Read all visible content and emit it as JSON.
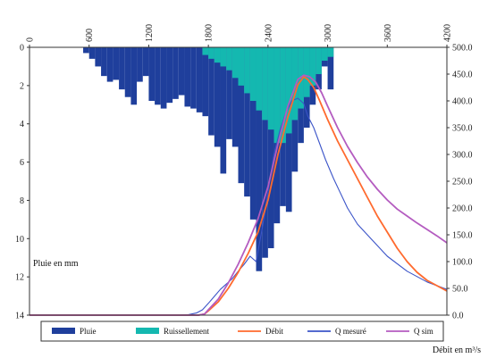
{
  "chart_data": {
    "type": "bar+line",
    "x": {
      "ticks": [
        0,
        600,
        1200,
        1800,
        2400,
        3000,
        3600,
        4200
      ],
      "range": [
        0,
        4200
      ],
      "tick_position": "top",
      "tick_rotation": -90
    },
    "y_left": {
      "label": "Pluie en mm",
      "ticks": [
        0,
        2,
        4,
        6,
        8,
        10,
        12,
        14
      ],
      "range": [
        0,
        14
      ],
      "inverted": true
    },
    "y_right": {
      "label": "Débit en m³/s",
      "ticks": [
        "0.0",
        "50.0",
        "100.0",
        "150.0",
        "200.0",
        "250.0",
        "300.0",
        "350.0",
        "400.0",
        "450.0",
        "500.0"
      ],
      "range": [
        0,
        500
      ]
    },
    "legend": {
      "placement": "bottom",
      "entries": [
        {
          "label": "Pluie",
          "color": "#1f3f9c",
          "kind": "bar"
        },
        {
          "label": "Ruissellement",
          "color": "#14b8b0",
          "kind": "bar"
        },
        {
          "label": "Débit",
          "color": "#ff6a2e",
          "kind": "line"
        },
        {
          "label": "Q mesuré",
          "color": "#3b54c8",
          "kind": "line"
        },
        {
          "label": "Q sim",
          "color": "#b45cc0",
          "kind": "line"
        }
      ]
    },
    "bar_width": 60,
    "series_bars": [
      {
        "name": "Pluie",
        "color": "#1f3f9c",
        "start_x": [
          540,
          600,
          660,
          720,
          780,
          840,
          900,
          960,
          1020,
          1080,
          1140,
          1200,
          1260,
          1320,
          1380,
          1440,
          1500,
          1560,
          1620,
          1680,
          1740,
          1800,
          1860,
          1920,
          1980,
          2040,
          2100,
          2160,
          2220,
          2280,
          2340,
          2400,
          2460,
          2520,
          2580,
          2640,
          2700,
          2760,
          2820,
          2880,
          2940,
          3000
        ],
        "values": [
          0.3,
          0.6,
          1.0,
          1.5,
          1.8,
          1.7,
          2.2,
          2.6,
          3.0,
          1.8,
          1.5,
          2.8,
          3.0,
          3.2,
          2.9,
          2.7,
          2.5,
          3.1,
          3.2,
          3.4,
          3.6,
          4.6,
          5.2,
          6.6,
          4.8,
          5.2,
          7.1,
          7.8,
          9.0,
          11.7,
          11.0,
          10.5,
          9.2,
          8.3,
          8.6,
          6.5,
          5.0,
          4.2,
          3.0,
          2.2,
          1.0,
          2.2
        ]
      },
      {
        "name": "Ruissellement",
        "color": "#14b8b0",
        "start_x": [
          1740,
          1800,
          1860,
          1920,
          1980,
          2040,
          2100,
          2160,
          2220,
          2280,
          2340,
          2400,
          2460,
          2520,
          2580,
          2640,
          2700,
          2760,
          2820,
          2880,
          2940,
          3000
        ],
        "values": [
          0.4,
          0.6,
          0.8,
          1.0,
          1.2,
          1.6,
          2.0,
          2.4,
          2.8,
          3.3,
          3.8,
          4.3,
          5.0,
          5.0,
          4.5,
          3.8,
          3.2,
          2.6,
          2.0,
          1.4,
          0.7,
          0.5
        ]
      }
    ],
    "series_lines": [
      {
        "name": "Q mesuré",
        "color": "#3b54c8",
        "x": [
          0,
          1500,
          1600,
          1680,
          1740,
          1800,
          1860,
          1920,
          1980,
          2040,
          2100,
          2160,
          2220,
          2280,
          2340,
          2400,
          2460,
          2520,
          2580,
          2640,
          2700,
          2760,
          2800,
          2860,
          2920,
          2980,
          3060,
          3200,
          3300,
          3400,
          3600,
          3800,
          4000,
          4200
        ],
        "y": [
          0,
          0,
          1,
          4,
          10,
          22,
          35,
          48,
          58,
          68,
          82,
          95,
          110,
          100,
          160,
          230,
          300,
          345,
          378,
          400,
          405,
          395,
          372,
          350,
          320,
          290,
          255,
          200,
          170,
          150,
          110,
          82,
          62,
          48
        ]
      },
      {
        "name": "Débit",
        "color": "#ff6a2e",
        "x": [
          0,
          1600,
          1700,
          1760,
          1800,
          1900,
          2000,
          2100,
          2200,
          2300,
          2400,
          2500,
          2600,
          2700,
          2760,
          2800,
          2860,
          2920,
          3000,
          3100,
          3200,
          3300,
          3400,
          3500,
          3600,
          3700,
          3800,
          3900,
          4000,
          4100,
          4200
        ],
        "y": [
          0,
          0,
          0,
          2,
          8,
          25,
          50,
          80,
          115,
          155,
          215,
          300,
          370,
          430,
          445,
          440,
          425,
          400,
          365,
          325,
          290,
          255,
          220,
          185,
          155,
          125,
          100,
          80,
          65,
          55,
          45
        ]
      },
      {
        "name": "Q sim",
        "color": "#b45cc0",
        "x": [
          0,
          1600,
          1700,
          1760,
          1800,
          1900,
          2000,
          2100,
          2200,
          2300,
          2400,
          2500,
          2600,
          2700,
          2760,
          2820,
          2880,
          2940,
          3000,
          3100,
          3200,
          3300,
          3400,
          3500,
          3600,
          3700,
          3800,
          3900,
          4000,
          4100,
          4200
        ],
        "y": [
          0,
          0,
          0,
          2,
          10,
          30,
          60,
          95,
          135,
          180,
          240,
          320,
          390,
          440,
          448,
          445,
          435,
          415,
          390,
          350,
          315,
          285,
          258,
          235,
          215,
          198,
          185,
          172,
          160,
          148,
          135
        ]
      }
    ]
  }
}
